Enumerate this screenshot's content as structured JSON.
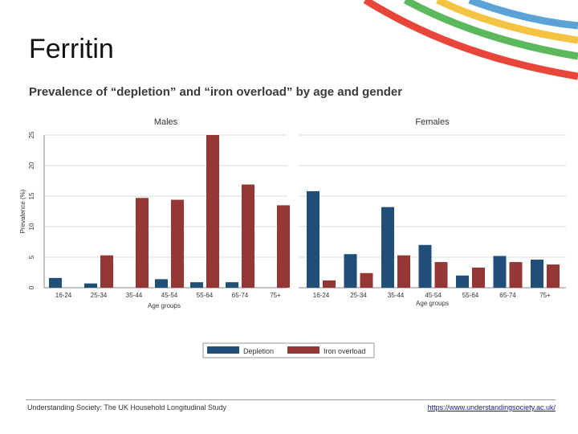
{
  "slide": {
    "title": "Ferritin",
    "subtitle": "Prevalence of “depletion” and “iron overload” by age and gender"
  },
  "footer": {
    "source": "Understanding Society: The UK Household Longitudinal Study",
    "link": "https://www.understandingsociety.ac.uk/"
  },
  "colors": {
    "depletion": "#1f4e79",
    "overload": "#953735",
    "deco_red": "#e8463a",
    "deco_green": "#5cb85c",
    "deco_yellow": "#f5c342",
    "deco_blue": "#5ba3d6"
  },
  "chart_data": [
    {
      "type": "bar",
      "title": "Males",
      "xlabel": "Age groups",
      "ylabel": "Prevalence (%)",
      "ylim": [
        0,
        25
      ],
      "yticks": [
        0,
        5,
        10,
        15,
        20,
        25
      ],
      "categories": [
        "16-24",
        "25-34",
        "35-44",
        "45-54",
        "55-64",
        "65-74",
        "75+"
      ],
      "series": [
        {
          "name": "Depletion",
          "values": [
            1.6,
            0.7,
            0.0,
            1.4,
            0.9,
            0.9,
            0.0
          ]
        },
        {
          "name": "Iron overload",
          "values": [
            0.0,
            5.3,
            14.7,
            14.4,
            25.0,
            16.9,
            13.5
          ]
        }
      ]
    },
    {
      "type": "bar",
      "title": "Females",
      "xlabel": "Age groups",
      "ylabel": "",
      "ylim": [
        0,
        25
      ],
      "categories": [
        "16-24",
        "25-34",
        "35-44",
        "45-54",
        "55-64",
        "65-74",
        "75+"
      ],
      "series": [
        {
          "name": "Depletion",
          "values": [
            15.8,
            5.5,
            13.2,
            7.0,
            2.0,
            5.2,
            4.6
          ]
        },
        {
          "name": "Iron overload",
          "values": [
            1.2,
            2.4,
            5.3,
            4.2,
            3.3,
            4.2,
            3.8
          ]
        }
      ]
    }
  ],
  "legend": [
    "Depletion",
    "Iron overload"
  ]
}
